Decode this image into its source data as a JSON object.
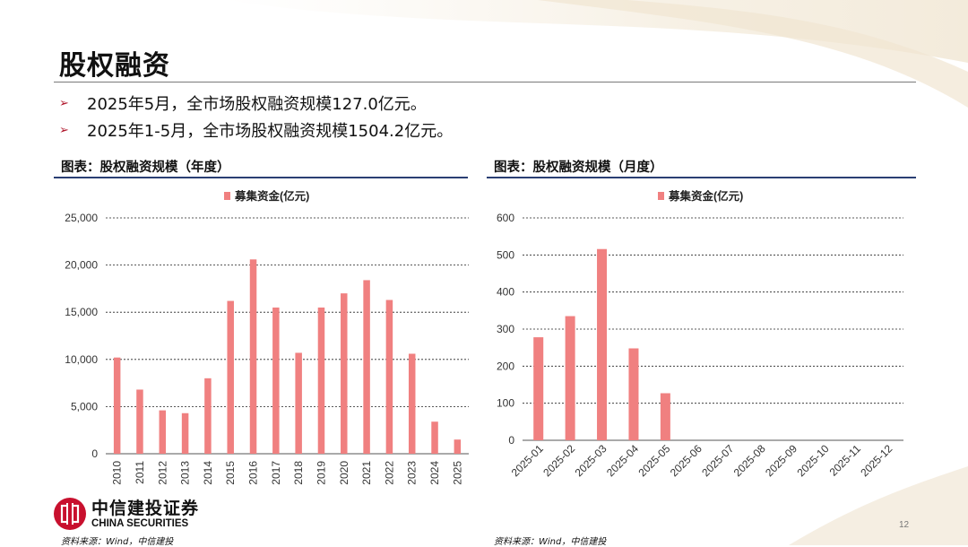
{
  "slide": {
    "title": "股权融资",
    "bullets": [
      "2025年5月，全市场股权融资规模127.0亿元。",
      "2025年1-5月，全市场股权融资规模1504.2亿元。"
    ],
    "bullet_icon": "arrow-bullet-icon",
    "page_number": "12",
    "source_left": "资料来源：Wind，中信建投",
    "source_right": "资料来源：Wind，中信建投"
  },
  "logo": {
    "cn": "中信建投证券",
    "en": "CHINA SECURITIES",
    "icon": "citic-logo-icon"
  },
  "colors": {
    "bar": "#F08080",
    "accent_rule": "#2a3f73",
    "bullet_arrow": "#b0182d",
    "gridline": "#000000"
  },
  "chart_data": [
    {
      "type": "bar",
      "heading": "图表：股权融资规模（年度）",
      "categories": [
        "2010",
        "2011",
        "2012",
        "2013",
        "2014",
        "2015",
        "2016",
        "2017",
        "2018",
        "2019",
        "2020",
        "2021",
        "2022",
        "2023",
        "2024",
        "2025"
      ],
      "series": [
        {
          "name": "募集资金(亿元)",
          "values": [
            10200,
            6800,
            4600,
            4300,
            8000,
            16200,
            20600,
            15500,
            10700,
            15500,
            17000,
            18400,
            16300,
            10600,
            3400,
            1504
          ]
        }
      ],
      "ylim": [
        0,
        25000
      ],
      "yticks": [
        0,
        5000,
        10000,
        15000,
        20000,
        25000
      ],
      "ytick_labels": [
        "0",
        "5,000",
        "10,000",
        "15,000",
        "20,000",
        "25,000"
      ],
      "legend_position": "top-center",
      "grid": "horizontal-dashed"
    },
    {
      "type": "bar",
      "heading": "图表：股权融资规模（月度）",
      "categories": [
        "2025-01",
        "2025-02",
        "2025-03",
        "2025-04",
        "2025-05",
        "2025-06",
        "2025-07",
        "2025-08",
        "2025-09",
        "2025-10",
        "2025-11",
        "2025-12"
      ],
      "series": [
        {
          "name": "募集资金(亿元)",
          "values": [
            278,
            335,
            516,
            248,
            127,
            null,
            null,
            null,
            null,
            null,
            null,
            null
          ]
        }
      ],
      "ylim": [
        0,
        600
      ],
      "yticks": [
        0,
        100,
        200,
        300,
        400,
        500,
        600
      ],
      "ytick_labels": [
        "0",
        "100",
        "200",
        "300",
        "400",
        "500",
        "600"
      ],
      "legend_position": "top-center",
      "grid": "horizontal-dashed"
    }
  ]
}
